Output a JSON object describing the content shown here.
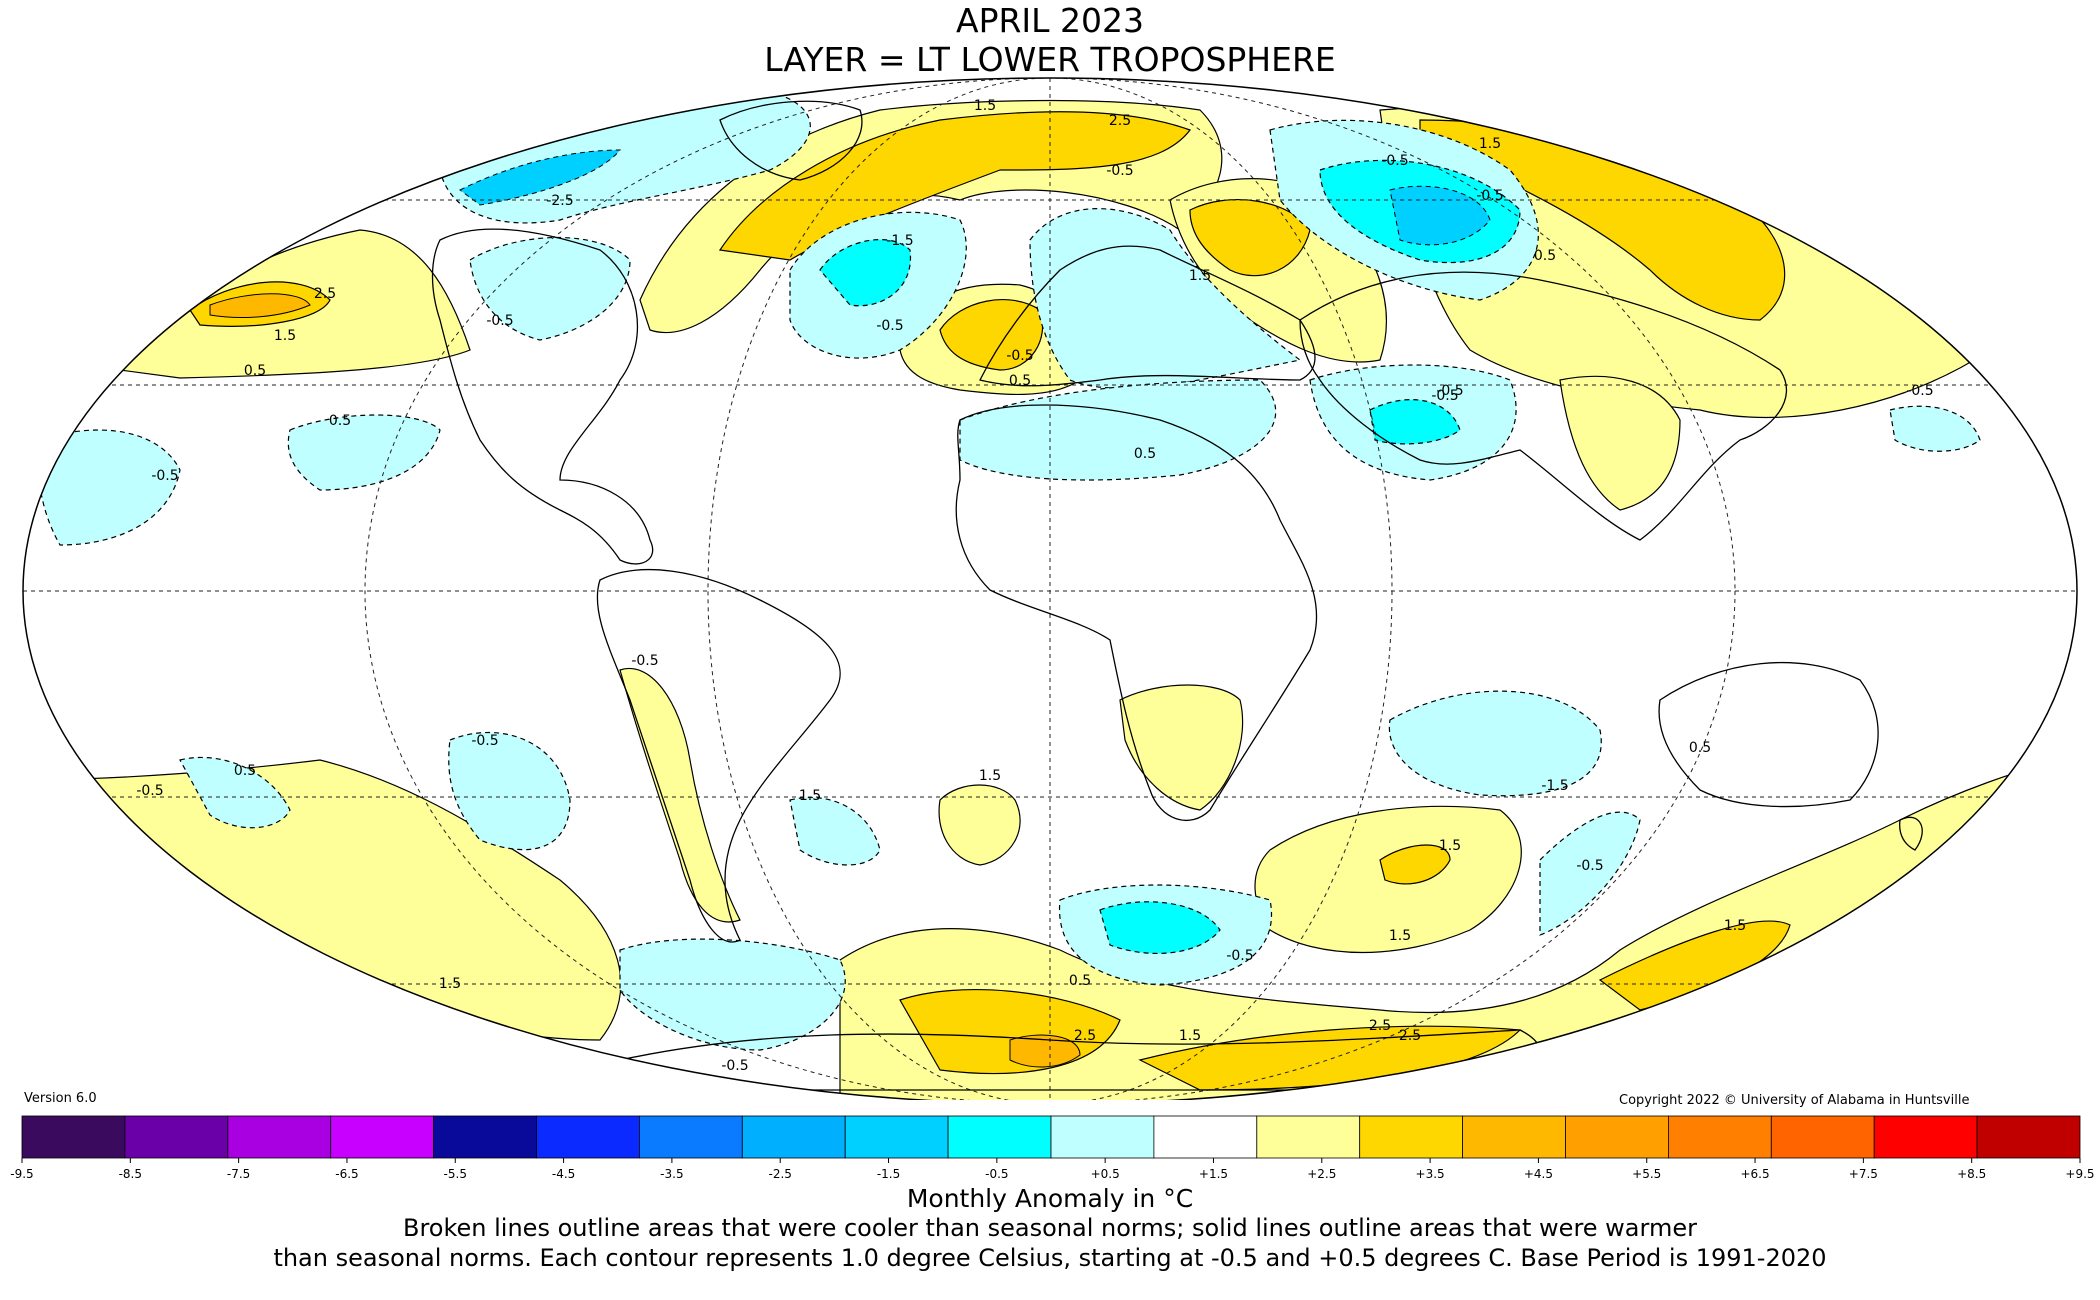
{
  "header": {
    "title": "APRIL 2023",
    "subtitle": "LAYER = LT LOWER TROPOSPHERE"
  },
  "map": {
    "projection": "mollweide",
    "graticule": "dashed",
    "contour_labels": [
      "2.5",
      "1.5",
      "-0.5",
      "-2.5",
      "1.5",
      "2.5",
      "-0.5",
      "-1.5",
      "-0.5",
      "0.5",
      "1.5",
      "0.5",
      "0.5",
      "-0.5",
      "-0.5",
      "-0.5",
      "-0.5",
      "0.5",
      "-0.5",
      "-0.5",
      "0.5",
      "1.5",
      "-0.5",
      "-0.5",
      "0.5",
      "-0.5",
      "1.5",
      "1.5",
      "-1.5",
      "-0.5",
      "0.5",
      "1.5",
      "2.5",
      "2.5",
      "1.5",
      "1.5",
      "1.5",
      "-0.5",
      "0.5",
      "-0.5",
      "1.5",
      "2.5",
      "-0.5"
    ]
  },
  "footer": {
    "version": "Version 6.0",
    "copyright": "Copyright 2022 © University of Alabama in Huntsville",
    "units": "Monthly Anomaly in °C",
    "note_line1": "Broken lines outline areas that were cooler than seasonal norms; solid lines outline areas that were warmer",
    "note_line2": "than seasonal norms. Each contour represents 1.0 degree Celsius, starting at -0.5 and +0.5 degrees C. Base Period is 1991-2020"
  },
  "colorbar": {
    "ticks": [
      "-9.5",
      "-8.5",
      "-7.5",
      "-6.5",
      "-5.5",
      "-4.5",
      "-3.5",
      "-2.5",
      "-1.5",
      "-0.5",
      "+0.5",
      "+1.5",
      "+2.5",
      "+3.5",
      "+4.5",
      "+5.5",
      "+6.5",
      "+7.5",
      "+8.5",
      "+9.5"
    ],
    "colors": [
      "#3a0a5e",
      "#6a00a8",
      "#a800e0",
      "#c800ff",
      "#0a0a9a",
      "#0a2aff",
      "#0a7aff",
      "#00b0ff",
      "#00d0ff",
      "#00ffff",
      "#c0ffff",
      "#ffffff",
      "#ffff99",
      "#ffd700",
      "#ffb800",
      "#ffa000",
      "#ff8000",
      "#ff6400",
      "#ff0000",
      "#c00000"
    ]
  }
}
